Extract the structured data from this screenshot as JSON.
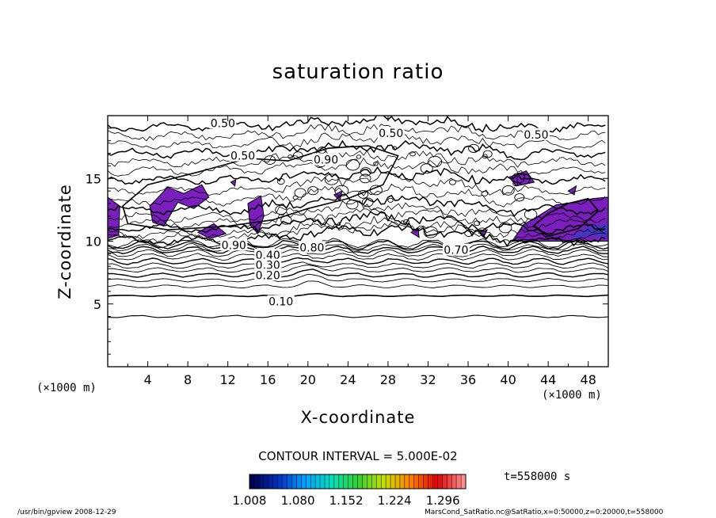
{
  "chart_data": {
    "type": "contour",
    "title": "saturation ratio",
    "xlabel": "X-coordinate",
    "ylabel": "Z-coordinate",
    "x_unit": "(×1000 m)",
    "y_unit": "(×1000 m)",
    "xlim": [
      0,
      50
    ],
    "ylim": [
      0,
      20
    ],
    "x_ticks": [
      4,
      8,
      12,
      16,
      20,
      24,
      28,
      32,
      36,
      40,
      44,
      48
    ],
    "y_ticks": [
      5,
      10,
      15
    ],
    "contour_interval": "CONTOUR INTERVAL = 5.000E-02",
    "contour_labels": [
      {
        "text": "0.50",
        "x": 11.5,
        "y": 19.4
      },
      {
        "text": "0.50",
        "x": 28.3,
        "y": 18.6
      },
      {
        "text": "0.50",
        "x": 42.8,
        "y": 18.5
      },
      {
        "text": "0.50",
        "x": 13.5,
        "y": 16.8
      },
      {
        "text": "0.90",
        "x": 21.8,
        "y": 16.5
      },
      {
        "text": "0.90",
        "x": 12.6,
        "y": 9.7
      },
      {
        "text": "0.40",
        "x": 16.0,
        "y": 8.9
      },
      {
        "text": "0.30",
        "x": 16.0,
        "y": 8.1
      },
      {
        "text": "0.20",
        "x": 16.0,
        "y": 7.3
      },
      {
        "text": "0.10",
        "x": 17.3,
        "y": 5.2
      },
      {
        "text": "0.80",
        "x": 20.4,
        "y": 9.5
      },
      {
        "text": "0.70",
        "x": 34.8,
        "y": 9.3
      }
    ],
    "colorbar": {
      "ticks": [
        "1.008",
        "1.080",
        "1.152",
        "1.224",
        "1.296"
      ],
      "min": 1.008,
      "max": 1.33,
      "colors": [
        "#000050",
        "#0030c0",
        "#00a0ff",
        "#00e0c0",
        "#30d030",
        "#c8e000",
        "#ff8000",
        "#e00000",
        "#ff9090"
      ]
    },
    "supersaturated_fill": "#7a1fbd",
    "time": "t=558000  s"
  },
  "footer": {
    "left": "/usr/bin/gpview   2008-12-29",
    "right": "MarsCond_SatRatio.nc@SatRatio,x=0:50000,z=0:20000,t=558000"
  }
}
